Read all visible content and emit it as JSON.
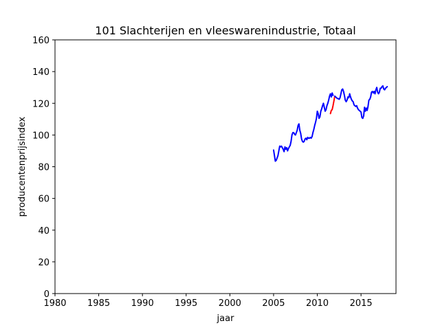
{
  "chart_data": {
    "type": "line",
    "title": "101 Slachterijen en vleeswarenindustrie, Totaal",
    "xlabel": "jaar",
    "ylabel": "producentenprijsindex",
    "xlim": [
      1980,
      2019
    ],
    "ylim": [
      0,
      160
    ],
    "xticks": [
      1980,
      1985,
      1990,
      1995,
      2000,
      2005,
      2010,
      2015
    ],
    "yticks": [
      0,
      20,
      40,
      60,
      80,
      100,
      120,
      140,
      160
    ],
    "grid": false,
    "series": [
      {
        "color": "#0000ff",
        "x": [
          2005.0,
          2005.1,
          2005.2,
          2005.3,
          2005.4,
          2005.5,
          2005.6,
          2005.7,
          2005.8,
          2005.9,
          2006.0,
          2006.1,
          2006.2,
          2006.3,
          2006.4,
          2006.5,
          2006.6,
          2006.7,
          2006.8,
          2006.9,
          2007.0,
          2007.1,
          2007.2,
          2007.3,
          2007.4,
          2007.5,
          2007.6,
          2007.7,
          2007.8,
          2007.9,
          2008.0,
          2008.1,
          2008.2,
          2008.3,
          2008.4,
          2008.5,
          2008.6,
          2008.7,
          2008.8,
          2008.9,
          2009.0,
          2009.1,
          2009.2,
          2009.3,
          2009.4,
          2009.5,
          2009.6,
          2009.7,
          2009.8,
          2009.9,
          2010.0,
          2010.1,
          2010.2,
          2010.3,
          2010.4,
          2010.5,
          2010.6,
          2010.7,
          2010.8,
          2010.9,
          2011.0,
          2011.1,
          2011.2,
          2011.3,
          2011.4,
          2011.5,
          2011.6,
          2011.7,
          2011.8
        ],
        "y": [
          90.5,
          87.0,
          83.5,
          84.0,
          85.5,
          87.0,
          90.0,
          93.0,
          92.5,
          93.0,
          92.0,
          91.0,
          89.5,
          92.5,
          91.0,
          92.0,
          90.0,
          91.5,
          92.5,
          93.5,
          96.0,
          100.0,
          101.5,
          101.5,
          100.5,
          100.0,
          101.5,
          103.0,
          106.0,
          107.0,
          103.0,
          101.0,
          97.5,
          96.0,
          95.5,
          96.0,
          97.5,
          98.0,
          97.0,
          98.5,
          98.0,
          98.0,
          98.5,
          98.0,
          99.0,
          101.5,
          103.5,
          106.0,
          108.0,
          110.5,
          115.0,
          113.5,
          110.5,
          111.5,
          115.0,
          116.5,
          118.5,
          120.0,
          117.5,
          115.0,
          116.0,
          118.5,
          120.0,
          122.0,
          124.5,
          126.0,
          124.0,
          126.5,
          125.0
        ]
      },
      {
        "color": "#ff0000",
        "x": [
          2011.5,
          2011.6,
          2011.7,
          2011.8,
          2011.9,
          2012.0
        ],
        "y": [
          113.5,
          115.5,
          116.0,
          118.5,
          121.5,
          124.5
        ]
      },
      {
        "color": "#0000ff",
        "x": [
          2012.0,
          2012.1,
          2012.2,
          2012.3,
          2012.4,
          2012.5,
          2012.6,
          2012.7,
          2012.8,
          2012.9,
          2013.0,
          2013.1,
          2013.2,
          2013.3,
          2013.4,
          2013.5,
          2013.6,
          2013.7,
          2013.8,
          2013.9,
          2014.0,
          2014.1,
          2014.2,
          2014.3,
          2014.4,
          2014.5,
          2014.6,
          2014.7,
          2014.8,
          2014.9,
          2015.0,
          2015.1,
          2015.2,
          2015.3,
          2015.4,
          2015.5,
          2015.6,
          2015.7,
          2015.8,
          2015.9,
          2016.0,
          2016.1,
          2016.2,
          2016.3,
          2016.4,
          2016.5,
          2016.6,
          2016.7,
          2016.8,
          2016.9,
          2017.0,
          2017.1,
          2017.2,
          2017.3,
          2017.4,
          2017.5,
          2017.6,
          2017.7,
          2017.8,
          2017.9,
          2018.0
        ],
        "y": [
          124.5,
          124.0,
          123.5,
          123.0,
          123.0,
          122.5,
          123.5,
          126.0,
          128.5,
          129.0,
          127.5,
          125.0,
          122.0,
          121.0,
          122.0,
          124.0,
          123.5,
          126.0,
          124.0,
          122.5,
          121.5,
          121.0,
          119.0,
          118.5,
          118.0,
          118.5,
          117.0,
          116.0,
          115.5,
          115.0,
          114.5,
          111.0,
          110.5,
          112.0,
          117.5,
          115.0,
          117.0,
          115.5,
          118.0,
          122.0,
          122.5,
          124.0,
          127.0,
          127.5,
          126.5,
          127.5,
          126.0,
          128.5,
          130.0,
          127.0,
          126.0,
          127.0,
          129.5,
          129.5,
          130.5,
          131.0,
          129.0,
          128.5,
          129.5,
          130.0,
          130.5
        ]
      }
    ]
  }
}
